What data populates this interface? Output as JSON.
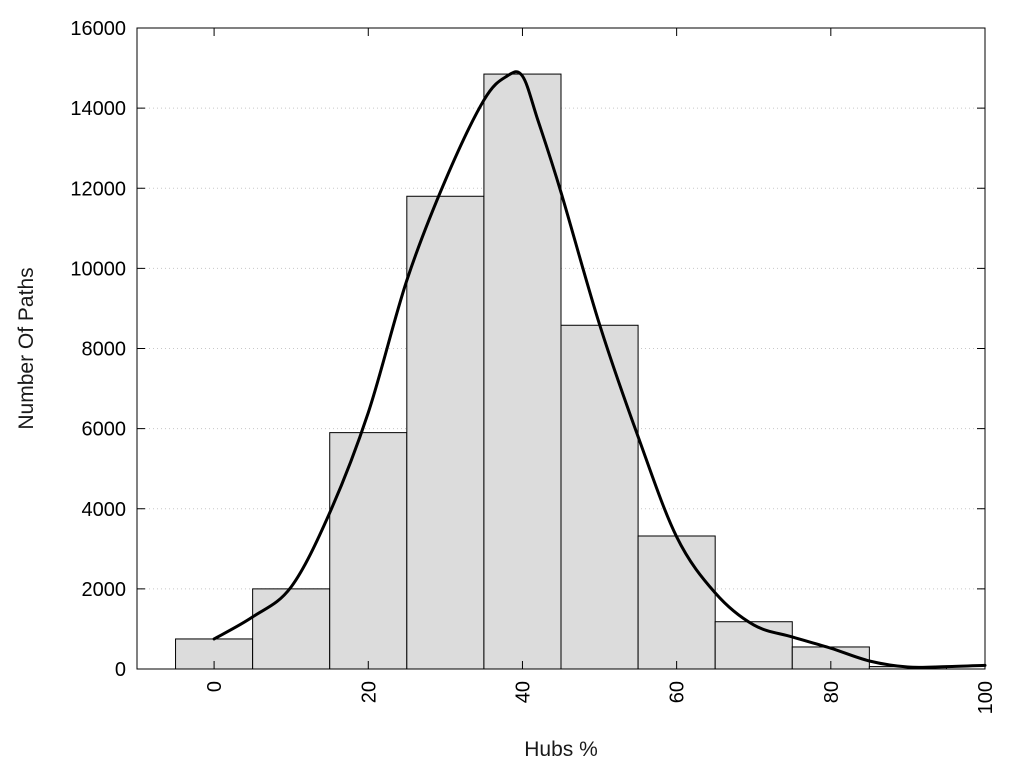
{
  "chart_data": {
    "type": "bar",
    "subtype": "histogram with smoothed density curve",
    "xlabel": "Hubs %",
    "ylabel": "Number Of Paths",
    "xlim": [
      -10,
      100
    ],
    "ylim": [
      0,
      16000
    ],
    "xticks": [
      0,
      20,
      40,
      60,
      80,
      100
    ],
    "yticks": [
      0,
      2000,
      4000,
      6000,
      8000,
      10000,
      12000,
      14000,
      16000
    ],
    "grid": "horizontal dotted",
    "bin_width": 10,
    "bins": [
      {
        "center": 0,
        "value": 750
      },
      {
        "center": 10,
        "value": 2000
      },
      {
        "center": 20,
        "value": 5900
      },
      {
        "center": 30,
        "value": 11800
      },
      {
        "center": 40,
        "value": 14850
      },
      {
        "center": 50,
        "value": 8580
      },
      {
        "center": 60,
        "value": 3320
      },
      {
        "center": 70,
        "value": 1180
      },
      {
        "center": 80,
        "value": 550
      },
      {
        "center": 90,
        "value": 60
      },
      {
        "center": 100,
        "value": 0
      }
    ],
    "curve": {
      "x": [
        0,
        5,
        10,
        15,
        20,
        25,
        30,
        35,
        38,
        40,
        42,
        45,
        50,
        55,
        60,
        65,
        70,
        75,
        80,
        85,
        90,
        95,
        100
      ],
      "y": [
        750,
        1300,
        2050,
        3900,
        6400,
        9700,
        12200,
        14200,
        14800,
        14800,
        13700,
        11900,
        8600,
        5800,
        3300,
        1900,
        1100,
        800,
        520,
        200,
        50,
        60,
        90
      ]
    },
    "colors": {
      "bar_fill": "#dcdcdc",
      "bar_stroke": "#000000",
      "curve": "#000000",
      "grid": "#c8c8c8"
    }
  }
}
